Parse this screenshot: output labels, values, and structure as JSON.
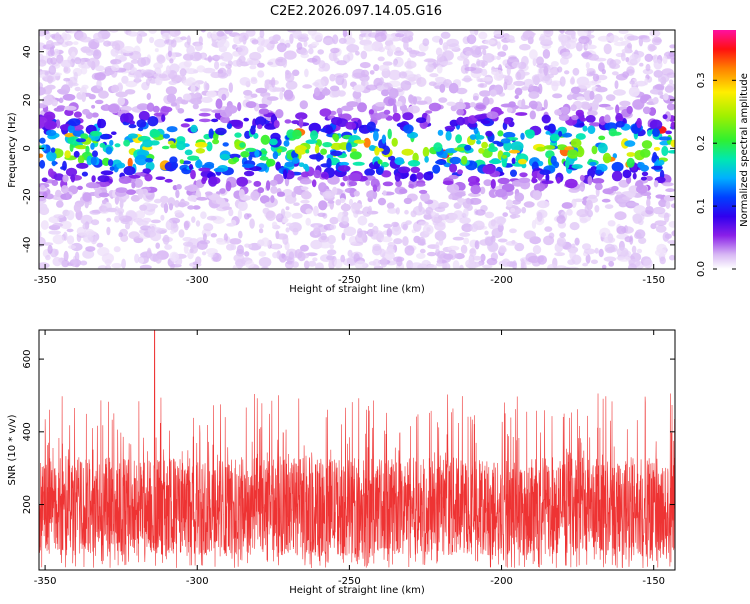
{
  "title": "C2E2.2026.097.14.05.G16",
  "chart_data": [
    {
      "type": "heatmap",
      "xlabel": "Height of straight line (km)",
      "ylabel": "Frequency (Hz)",
      "xlim": [
        -352,
        -143
      ],
      "ylim": [
        -50,
        49
      ],
      "x_ticks": [
        -350,
        -300,
        -250,
        -200,
        -150
      ],
      "y_ticks": [
        -40,
        -20,
        0,
        20,
        40
      ],
      "colorbar": {
        "label": "Normalized spectral amplitude",
        "range": [
          0.0,
          0.38
        ],
        "ticks": [
          0.0,
          0.1,
          0.2,
          0.3
        ],
        "tick_labels": [
          "0.0",
          "0.1",
          "0.2",
          "0.3"
        ]
      },
      "band": {
        "center_hz": 0,
        "half_width_hz": 10,
        "peak_amplitude": 0.35,
        "background_amplitude": 0.02
      },
      "grid": false
    },
    {
      "type": "line",
      "xlabel": "Height of straight line (km)",
      "ylabel": "SNR (10 * v/v)",
      "xlim": [
        -352,
        -143
      ],
      "ylim": [
        20,
        680
      ],
      "x_ticks": [
        -350,
        -300,
        -250,
        -200,
        -150
      ],
      "y_ticks": [
        200,
        400,
        600
      ],
      "color": "#ee3333",
      "signal": {
        "typical_low": 60,
        "typical_high": 330,
        "max": 680,
        "max_at_km": -314
      },
      "grid": false
    }
  ]
}
